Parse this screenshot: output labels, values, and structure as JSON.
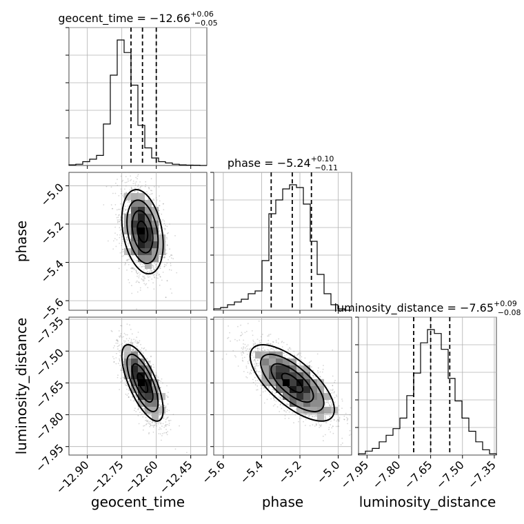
{
  "chart_data": {
    "type": "corner",
    "parameters": [
      "geocent_time",
      "phase",
      "luminosity_distance"
    ],
    "titles": [
      {
        "param": "geocent_time",
        "prefix": "geocent_time = ",
        "median": "−12.66",
        "plus": "+0.06",
        "minus": "−0.05"
      },
      {
        "param": "phase",
        "prefix": "phase = ",
        "median": "−5.24",
        "plus": "+0.10",
        "minus": "−0.11"
      },
      {
        "param": "luminosity_distance",
        "prefix": "luminosity_distance = ",
        "median": "−7.65",
        "plus": "+0.09",
        "minus": "−0.08"
      }
    ],
    "axis_labels": {
      "x": [
        "geocent_time",
        "phase",
        "luminosity_distance"
      ],
      "y": [
        "phase",
        "luminosity_distance"
      ]
    },
    "ranges": {
      "geocent_time": [
        -12.98,
        -12.38
      ],
      "phase": [
        -5.65,
        -4.93
      ],
      "luminosity_distance": [
        -7.99,
        -7.34
      ]
    },
    "ticks": {
      "geocent_time": {
        "values": [
          -12.9,
          -12.75,
          -12.6,
          -12.45
        ],
        "labels": [
          "−12.90",
          "−12.75",
          "−12.60",
          "−12.45"
        ]
      },
      "phase": {
        "values": [
          -5.6,
          -5.4,
          -5.2,
          -5.0
        ],
        "labels": [
          "−5.6",
          "−5.4",
          "−5.2",
          "−5.0"
        ]
      },
      "luminosity_distance": {
        "values": [
          -7.95,
          -7.8,
          -7.65,
          -7.5,
          -7.35
        ],
        "labels": [
          "−7.95",
          "−7.80",
          "−7.65",
          "−7.50",
          "−7.35"
        ]
      }
    },
    "quantiles": {
      "geocent_time": [
        -12.71,
        -12.66,
        -12.6
      ],
      "phase": [
        -5.35,
        -5.24,
        -5.14
      ],
      "luminosity_distance": [
        -7.73,
        -7.65,
        -7.56
      ]
    },
    "histograms": {
      "geocent_time": {
        "edges_start": -12.98,
        "bin_width": 0.03,
        "counts": [
          0.5,
          1,
          3,
          5,
          8,
          33,
          72,
          100,
          90,
          64,
          32,
          14,
          6,
          3,
          2,
          1,
          0.5,
          0.3,
          0.2,
          0
        ]
      },
      "phase": {
        "edges_start": -5.65,
        "bin_width": 0.036,
        "counts": [
          1,
          2,
          4,
          6,
          8,
          12,
          14,
          36,
          70,
          80,
          88,
          91,
          89,
          77,
          50,
          26,
          12,
          4,
          1,
          0
        ]
      },
      "luminosity_distance": {
        "edges_start": -7.99,
        "bin_width": 0.0325,
        "counts": [
          1,
          3,
          5,
          10,
          15,
          20,
          28,
          45,
          62,
          85,
          95,
          92,
          80,
          58,
          41,
          28,
          18,
          10,
          4,
          1
        ]
      }
    },
    "scatter_2d": [
      {
        "x": "geocent_time",
        "y": "phase",
        "cx": -12.66,
        "cy": -5.24,
        "sx": 0.045,
        "sy": 0.11,
        "rho": -0.3,
        "n": 2400
      },
      {
        "x": "geocent_time",
        "y": "luminosity_distance",
        "cx": -12.66,
        "cy": -7.65,
        "sx": 0.045,
        "sy": 0.09,
        "rho": -0.7,
        "n": 2400
      },
      {
        "x": "phase",
        "y": "luminosity_distance",
        "cx": -5.24,
        "cy": -7.65,
        "sx": 0.11,
        "sy": 0.09,
        "rho": -0.7,
        "n": 2400
      }
    ]
  }
}
